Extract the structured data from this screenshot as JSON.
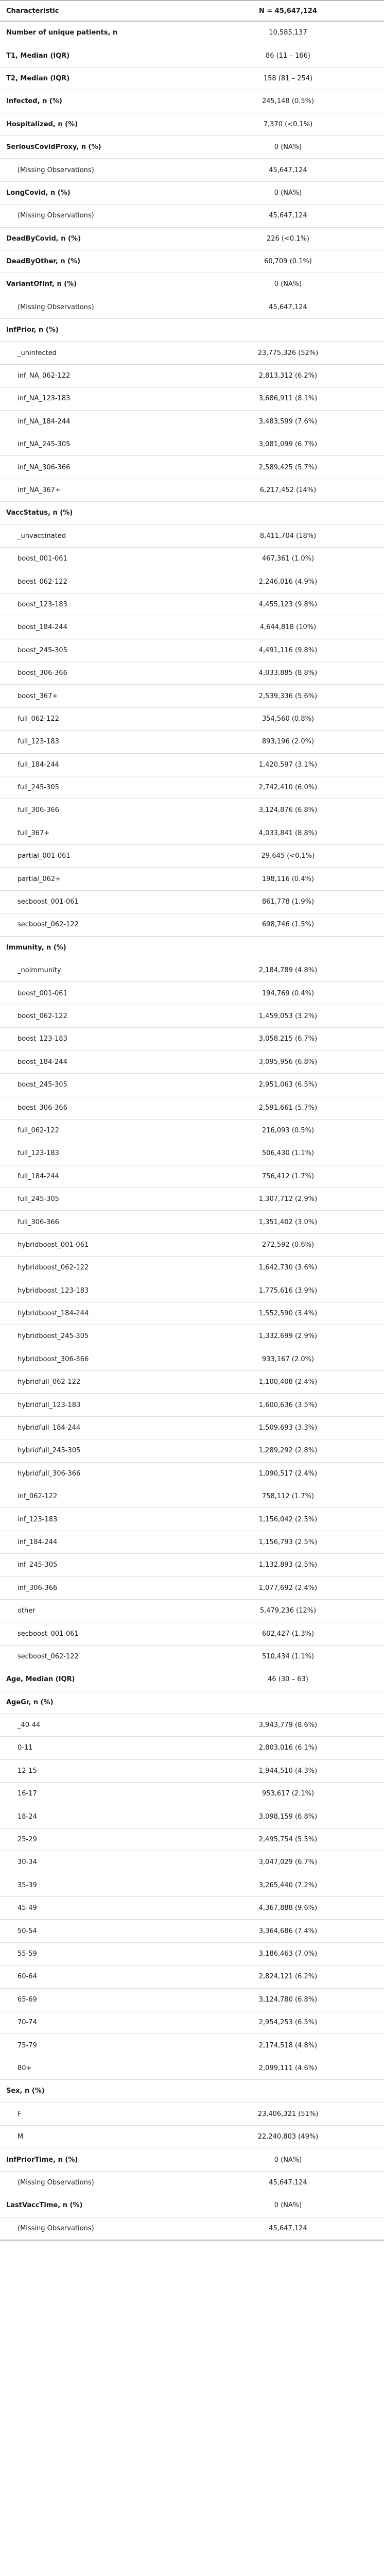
{
  "table": {
    "header": {
      "characteristic": "Characteristic",
      "n": "N = 45,647,124"
    },
    "rows": [
      {
        "label": "Number of unique patients, n",
        "value": "10,585,137",
        "bold": true
      },
      {
        "label": "T1, Median (IQR)",
        "value": "86 (11 – 166)",
        "bold": true
      },
      {
        "label": "T2, Median (IQR)",
        "value": "158 (81 – 254)",
        "bold": true
      },
      {
        "label": "Infected, n (%)",
        "value": "245,148 (0.5%)",
        "bold": true
      },
      {
        "label": "Hospitalized, n (%)",
        "value": "7,370 (<0.1%)",
        "bold": true
      },
      {
        "label": "SeriousCovidProxy, n (%)",
        "value": "0 (NA%)",
        "bold": true
      },
      {
        "label": "(Missing Observations)",
        "value": "45,647,124",
        "bold": false
      },
      {
        "label": "LongCovid, n (%)",
        "value": "0 (NA%)",
        "bold": true
      },
      {
        "label": "(Missing Observations)",
        "value": "45,647,124",
        "bold": false
      },
      {
        "label": "DeadByCovid, n (%)",
        "value": "226 (<0.1%)",
        "bold": true
      },
      {
        "label": "DeadByOther, n (%)",
        "value": "60,709 (0.1%)",
        "bold": true
      },
      {
        "label": "VariantOfInf, n (%)",
        "value": "0 (NA%)",
        "bold": true
      },
      {
        "label": "(Missing Observations)",
        "value": "45,647,124",
        "bold": false
      },
      {
        "label": "InfPrior, n (%)",
        "value": "",
        "bold": true
      },
      {
        "label": "_uninfected",
        "value": "23,775,326 (52%)",
        "bold": false
      },
      {
        "label": "inf_NA_062-122",
        "value": "2,813,312 (6.2%)",
        "bold": false
      },
      {
        "label": "inf_NA_123-183",
        "value": "3,686,911 (8.1%)",
        "bold": false
      },
      {
        "label": "inf_NA_184-244",
        "value": "3,483,599 (7.6%)",
        "bold": false
      },
      {
        "label": "inf_NA_245-305",
        "value": "3,081,099 (6.7%)",
        "bold": false
      },
      {
        "label": "inf_NA_306-366",
        "value": "2,589,425 (5.7%)",
        "bold": false
      },
      {
        "label": "inf_NA_367+",
        "value": "6,217,452 (14%)",
        "bold": false
      },
      {
        "label": "VaccStatus, n (%)",
        "value": "",
        "bold": true
      },
      {
        "label": "_unvaccinated",
        "value": "8,411,704 (18%)",
        "bold": false
      },
      {
        "label": "boost_001-061",
        "value": "467,361 (1.0%)",
        "bold": false
      },
      {
        "label": "boost_062-122",
        "value": "2,246,016 (4.9%)",
        "bold": false
      },
      {
        "label": "boost_123-183",
        "value": "4,455,123 (9.8%)",
        "bold": false
      },
      {
        "label": "boost_184-244",
        "value": "4,644,818 (10%)",
        "bold": false
      },
      {
        "label": "boost_245-305",
        "value": "4,491,116 (9.8%)",
        "bold": false
      },
      {
        "label": "boost_306-366",
        "value": "4,033,885 (8.8%)",
        "bold": false
      },
      {
        "label": "boost_367+",
        "value": "2,539,336 (5.6%)",
        "bold": false
      },
      {
        "label": "full_062-122",
        "value": "354,560 (0.8%)",
        "bold": false
      },
      {
        "label": "full_123-183",
        "value": "893,196 (2.0%)",
        "bold": false
      },
      {
        "label": "full_184-244",
        "value": "1,420,597 (3.1%)",
        "bold": false
      },
      {
        "label": "full_245-305",
        "value": "2,742,410 (6.0%)",
        "bold": false
      },
      {
        "label": "full_306-366",
        "value": "3,124,876 (6.8%)",
        "bold": false
      },
      {
        "label": "full_367+",
        "value": "4,033,841 (8.8%)",
        "bold": false
      },
      {
        "label": "partial_001-061",
        "value": "29,645 (<0.1%)",
        "bold": false
      },
      {
        "label": "partial_062+",
        "value": "198,116 (0.4%)",
        "bold": false
      },
      {
        "label": "secboost_001-061",
        "value": "861,778 (1.9%)",
        "bold": false
      },
      {
        "label": "secboost_062-122",
        "value": "698,746 (1.5%)",
        "bold": false
      },
      {
        "label": "Immunity, n (%)",
        "value": "",
        "bold": true
      },
      {
        "label": "_noimmunity",
        "value": "2,184,789 (4.8%)",
        "bold": false
      },
      {
        "label": "boost_001-061",
        "value": "194,769 (0.4%)",
        "bold": false
      },
      {
        "label": "boost_062-122",
        "value": "1,459,053 (3.2%)",
        "bold": false
      },
      {
        "label": "boost_123-183",
        "value": "3,058,215 (6.7%)",
        "bold": false
      },
      {
        "label": "boost_184-244",
        "value": "3,095,956 (6.8%)",
        "bold": false
      },
      {
        "label": "boost_245-305",
        "value": "2,951,063 (6.5%)",
        "bold": false
      },
      {
        "label": "boost_306-366",
        "value": "2,591,661 (5.7%)",
        "bold": false
      },
      {
        "label": "full_062-122",
        "value": "216,093 (0.5%)",
        "bold": false
      },
      {
        "label": "full_123-183",
        "value": "506,430 (1.1%)",
        "bold": false
      },
      {
        "label": "full_184-244",
        "value": "756,412 (1.7%)",
        "bold": false
      },
      {
        "label": "full_245-305",
        "value": "1,307,712 (2.9%)",
        "bold": false
      },
      {
        "label": "full_306-366",
        "value": "1,351,402 (3.0%)",
        "bold": false
      },
      {
        "label": "hybridboost_001-061",
        "value": "272,592 (0.6%)",
        "bold": false
      },
      {
        "label": "hybridboost_062-122",
        "value": "1,642,730 (3.6%)",
        "bold": false
      },
      {
        "label": "hybridboost_123-183",
        "value": "1,775,616 (3.9%)",
        "bold": false
      },
      {
        "label": "hybridboost_184-244",
        "value": "1,552,590 (3.4%)",
        "bold": false
      },
      {
        "label": "hybridboost_245-305",
        "value": "1,332,699 (2.9%)",
        "bold": false
      },
      {
        "label": "hybridboost_306-366",
        "value": "933,167 (2.0%)",
        "bold": false
      },
      {
        "label": "hybridfull_062-122",
        "value": "1,100,408 (2.4%)",
        "bold": false
      },
      {
        "label": "hybridfull_123-183",
        "value": "1,600,636 (3.5%)",
        "bold": false
      },
      {
        "label": "hybridfull_184-244",
        "value": "1,509,693 (3.3%)",
        "bold": false
      },
      {
        "label": "hybridfull_245-305",
        "value": "1,289,292 (2.8%)",
        "bold": false
      },
      {
        "label": "hybridfull_306-366",
        "value": "1,090,517 (2.4%)",
        "bold": false
      },
      {
        "label": "inf_062-122",
        "value": "758,112 (1.7%)",
        "bold": false
      },
      {
        "label": "inf_123-183",
        "value": "1,156,042 (2.5%)",
        "bold": false
      },
      {
        "label": "inf_184-244",
        "value": "1,156,793 (2.5%)",
        "bold": false
      },
      {
        "label": "inf_245-305",
        "value": "1,132,893 (2.5%)",
        "bold": false
      },
      {
        "label": "inf_306-366",
        "value": "1,077,692 (2.4%)",
        "bold": false
      },
      {
        "label": "other",
        "value": "5,479,236 (12%)",
        "bold": false
      },
      {
        "label": "secboost_001-061",
        "value": "602,427 (1.3%)",
        "bold": false
      },
      {
        "label": "secboost_062-122",
        "value": "510,434 (1.1%)",
        "bold": false
      },
      {
        "label": "Age, Median (IQR)",
        "value": "46 (30 – 63)",
        "bold": true
      },
      {
        "label": "AgeGr, n (%)",
        "value": "",
        "bold": true
      },
      {
        "label": "_40-44",
        "value": "3,943,779 (8.6%)",
        "bold": false
      },
      {
        "label": "0-11",
        "value": "2,803,016 (6.1%)",
        "bold": false
      },
      {
        "label": "12-15",
        "value": "1,944,510 (4.3%)",
        "bold": false
      },
      {
        "label": "16-17",
        "value": "953,617 (2.1%)",
        "bold": false
      },
      {
        "label": "18-24",
        "value": "3,098,159 (6.8%)",
        "bold": false
      },
      {
        "label": "25-29",
        "value": "2,495,754 (5.5%)",
        "bold": false
      },
      {
        "label": "30-34",
        "value": "3,047,029 (6.7%)",
        "bold": false
      },
      {
        "label": "35-39",
        "value": "3,265,440 (7.2%)",
        "bold": false
      },
      {
        "label": "45-49",
        "value": "4,367,888 (9.6%)",
        "bold": false
      },
      {
        "label": "50-54",
        "value": "3,364,686 (7.4%)",
        "bold": false
      },
      {
        "label": "55-59",
        "value": "3,186,463 (7.0%)",
        "bold": false
      },
      {
        "label": "60-64",
        "value": "2,824,121 (6.2%)",
        "bold": false
      },
      {
        "label": "65-69",
        "value": "3,124,780 (6.8%)",
        "bold": false
      },
      {
        "label": "70-74",
        "value": "2,954,253 (6.5%)",
        "bold": false
      },
      {
        "label": "75-79",
        "value": "2,174,518 (4.8%)",
        "bold": false
      },
      {
        "label": "80+",
        "value": "2,099,111 (4.6%)",
        "bold": false
      },
      {
        "label": "Sex, n (%)",
        "value": "",
        "bold": true
      },
      {
        "label": "F",
        "value": "23,406,321 (51%)",
        "bold": false
      },
      {
        "label": "M",
        "value": "22,240,803 (49%)",
        "bold": false
      },
      {
        "label": "InfPriorTime, n (%)",
        "value": "0 (NA%)",
        "bold": true
      },
      {
        "label": "(Missing Observations)",
        "value": "45,647,124",
        "bold": false
      },
      {
        "label": "LastVaccTime, n (%)",
        "value": "0 (NA%)",
        "bold": true
      },
      {
        "label": "(Missing Observations)",
        "value": "45,647,124",
        "bold": false
      }
    ]
  }
}
